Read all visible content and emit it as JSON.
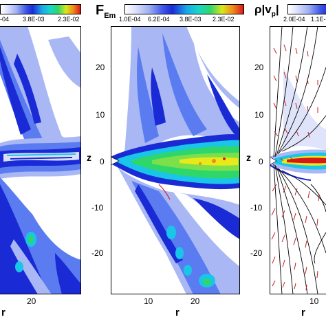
{
  "panels": [
    {
      "title": "",
      "colorbar_ticks": [
        "-04",
        "3.8E-03",
        "2.3E-02"
      ],
      "xlabel": "r",
      "xticks": [
        "20"
      ],
      "ylabel": "",
      "yticks": []
    },
    {
      "title_main": "F",
      "title_sub": "Em",
      "colorbar_ticks": [
        "1.0E-04",
        "6.2E-04",
        "3.8E-03",
        "2.3E-02"
      ],
      "xlabel": "r",
      "xticks": [
        "10",
        "20"
      ],
      "ylabel": "z",
      "yticks": [
        "20",
        "10",
        "0",
        "-10",
        "-20"
      ]
    },
    {
      "title_main": "ρ|v",
      "title_sub": "p",
      "title_end": "|",
      "colorbar_ticks": [
        "2.0E-04",
        "1.1E-"
      ],
      "xlabel": "r",
      "xticks": [
        "10"
      ],
      "ylabel": "z",
      "yticks": [
        "20",
        "10",
        "0",
        "-10",
        "-20"
      ]
    }
  ],
  "colors": {
    "deep_blue": "#1a2bd6",
    "mid_blue": "#5a7cf0",
    "light_blue": "#a9b8f5",
    "cyan": "#19c6e8",
    "green": "#2fd66a",
    "yellow": "#e8e81a",
    "orange": "#f08a1a",
    "red": "#d81818",
    "arrow_red": "#c41e1e"
  }
}
